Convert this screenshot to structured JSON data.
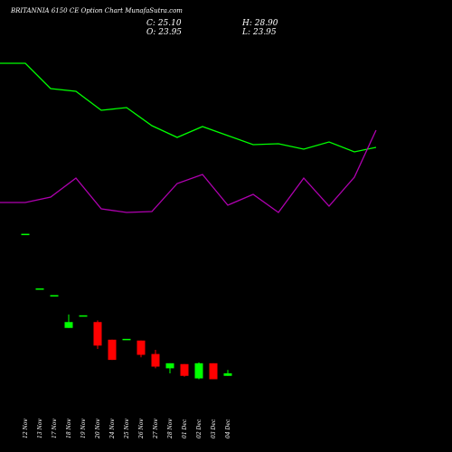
{
  "header": {
    "title": "BRITANNIA 6150  CE Option  Chart MunafaSutra.com",
    "open_label": "O: 23.95",
    "close_label": "C: 25.10",
    "high_label": "H: 28.90",
    "low_label": "L: 23.95"
  },
  "chart_data": {
    "type": "candlestick",
    "title": "BRITANNIA 6150  CE Option  Chart MunafaSutra.com",
    "categories": [
      "12 Nov",
      "13 Nov",
      "17 Nov",
      "18 Nov",
      "19 Nov",
      "20 Nov",
      "24 Nov",
      "25 Nov",
      "26 Nov",
      "27 Nov",
      "28 Nov",
      "01 Dec",
      "02 Dec",
      "03 Dec",
      "04 Dec"
    ],
    "background": "#000000",
    "colors": {
      "up": "#00ff00",
      "down": "#ff0000",
      "green_line": "#00ff00",
      "magenta_line": "#b000b0"
    },
    "grid": false,
    "candles": [
      {
        "date": "12 Nov",
        "open": 180,
        "high": 180,
        "low": 180,
        "close": 180
      },
      {
        "date": "13 Nov",
        "open": 115,
        "high": 115,
        "low": 115,
        "close": 115
      },
      {
        "date": "17 Nov",
        "open": 107,
        "high": 107,
        "low": 107,
        "close": 107
      },
      {
        "date": "18 Nov",
        "open": 68,
        "high": 84,
        "low": 68,
        "close": 75
      },
      {
        "date": "19 Nov",
        "open": 83,
        "high": 83,
        "low": 83,
        "close": 83
      },
      {
        "date": "20 Nov",
        "open": 75,
        "high": 77,
        "low": 43,
        "close": 47
      },
      {
        "date": "24 Nov",
        "open": 54,
        "high": 54,
        "low": 30,
        "close": 30
      },
      {
        "date": "25 Nov",
        "open": 55,
        "high": 55,
        "low": 55,
        "close": 55
      },
      {
        "date": "26 Nov",
        "open": 53,
        "high": 53,
        "low": 33,
        "close": 36
      },
      {
        "date": "27 Nov",
        "open": 37,
        "high": 42,
        "low": 20,
        "close": 22
      },
      {
        "date": "28 Nov",
        "open": 20,
        "high": 26,
        "low": 14,
        "close": 26
      },
      {
        "date": "01 Dec",
        "open": 25,
        "high": 25,
        "low": 10,
        "close": 11
      },
      {
        "date": "02 Dec",
        "open": 8,
        "high": 27,
        "low": 7,
        "close": 26
      },
      {
        "date": "03 Dec",
        "open": 26,
        "high": 26,
        "low": 7,
        "close": 7
      },
      {
        "date": "04 Dec",
        "open": 11,
        "high": 18,
        "low": 11,
        "close": 14
      }
    ],
    "green_line": [
      70,
      70,
      98,
      101,
      122,
      119,
      139,
      152,
      140,
      150,
      160,
      159,
      165,
      157,
      168,
      163
    ],
    "magenta_line": [
      224,
      224,
      218,
      197,
      231,
      235,
      234,
      203,
      193,
      227,
      215,
      235,
      197,
      228,
      196,
      144
    ],
    "line_x_positions": [
      0,
      28,
      56,
      84,
      112,
      140,
      168,
      196,
      224,
      252,
      280,
      308,
      336,
      364,
      392,
      416
    ],
    "ylim": [
      0,
      200
    ]
  }
}
